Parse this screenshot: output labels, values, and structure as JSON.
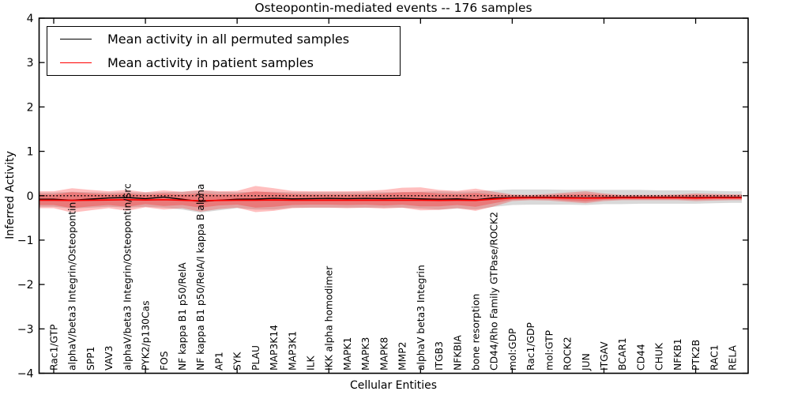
{
  "chart_data": {
    "type": "line",
    "title": "Osteopontin-mediated events -- 176 samples",
    "xlabel": "Cellular Entities",
    "ylabel": "Inferred Activity",
    "ylim": [
      -4,
      4
    ],
    "yticks": [
      -4,
      -3,
      -2,
      -1,
      0,
      1,
      2,
      3,
      4
    ],
    "xtick_interval": 5,
    "grid": false,
    "zero_line": {
      "y": 0,
      "style": "dotted",
      "color": "#000000"
    },
    "categories": [
      "Rac1/GTP",
      "alphaV/beta3 Integrin/Osteopontin",
      "SPP1",
      "VAV3",
      "alphaV/beta3 Integrin/Osteopontin/Src",
      "PYK2/p130Cas",
      "FOS",
      "NF kappa B1 p50/RelA",
      "NF kappa B1 p50/RelA/I kappa B alpha",
      "AP1",
      "SYK",
      "PLAU",
      "MAP3K14",
      "MAP3K1",
      "ILK",
      "IKK alpha homodimer",
      "MAPK1",
      "MAPK3",
      "MAPK8",
      "MMP2",
      "alphaV beta3 Integrin",
      "ITGB3",
      "NFKBIA",
      "bone resorption",
      "CD44/Rho Family GTPase/ROCK2",
      "mol:GDP",
      "Rac1/GDP",
      "mol:GTP",
      "ROCK2",
      "JUN",
      "ITGAV",
      "BCAR1",
      "CD44",
      "CHUK",
      "NFKB1",
      "PTK2B",
      "RAC1",
      "RELA"
    ],
    "series": [
      {
        "name": "Mean activity in all permuted samples",
        "color": "#000000",
        "values": [
          -0.08,
          -0.1,
          -0.075,
          -0.05,
          -0.04,
          -0.065,
          -0.03,
          -0.08,
          -0.13,
          -0.1,
          -0.08,
          -0.075,
          -0.06,
          -0.07,
          -0.065,
          -0.06,
          -0.065,
          -0.06,
          -0.065,
          -0.06,
          -0.07,
          -0.08,
          -0.07,
          -0.09,
          -0.05,
          -0.04,
          -0.035,
          -0.035,
          -0.04,
          -0.045,
          -0.04,
          -0.035,
          -0.035,
          -0.035,
          -0.035,
          -0.04,
          -0.035,
          -0.035
        ]
      },
      {
        "name": "Mean activity in patient samples",
        "color": "#ff0000",
        "values": [
          -0.1,
          -0.105,
          -0.1,
          -0.095,
          -0.09,
          -0.095,
          -0.09,
          -0.1,
          -0.115,
          -0.105,
          -0.1,
          -0.1,
          -0.095,
          -0.1,
          -0.1,
          -0.1,
          -0.1,
          -0.1,
          -0.1,
          -0.1,
          -0.1,
          -0.105,
          -0.1,
          -0.105,
          -0.075,
          -0.05,
          -0.045,
          -0.045,
          -0.05,
          -0.055,
          -0.05,
          -0.045,
          -0.045,
          -0.045,
          -0.045,
          -0.05,
          -0.045,
          -0.045
        ]
      }
    ],
    "bands": [
      {
        "name": "permuted-sample-range",
        "color": "#828282",
        "opacity": 0.3,
        "upper": [
          0.07,
          0.09,
          0.08,
          0.07,
          0.08,
          0.07,
          0.08,
          0.09,
          0.11,
          0.09,
          0.08,
          0.09,
          0.09,
          0.08,
          0.08,
          0.08,
          0.08,
          0.08,
          0.08,
          0.08,
          0.09,
          0.1,
          0.09,
          0.1,
          0.12,
          0.14,
          0.14,
          0.14,
          0.13,
          0.13,
          0.13,
          0.13,
          0.13,
          0.12,
          0.12,
          0.12,
          0.11,
          0.1
        ],
        "lower": [
          -0.25,
          -0.29,
          -0.27,
          -0.25,
          -0.27,
          -0.25,
          -0.27,
          -0.31,
          -0.38,
          -0.33,
          -0.28,
          -0.31,
          -0.31,
          -0.27,
          -0.27,
          -0.27,
          -0.27,
          -0.27,
          -0.27,
          -0.27,
          -0.29,
          -0.31,
          -0.29,
          -0.31,
          -0.25,
          -0.21,
          -0.2,
          -0.2,
          -0.2,
          -0.21,
          -0.19,
          -0.19,
          -0.18,
          -0.18,
          -0.18,
          -0.18,
          -0.17,
          -0.16
        ]
      },
      {
        "name": "patient-sample-range-outer",
        "color": "#ff0000",
        "opacity": 0.25,
        "upper": [
          0.1,
          0.17,
          0.13,
          0.1,
          0.13,
          0.08,
          0.12,
          0.09,
          0.13,
          0.1,
          0.11,
          0.22,
          0.17,
          0.11,
          0.1,
          0.1,
          0.1,
          0.11,
          0.13,
          0.18,
          0.19,
          0.13,
          0.11,
          0.16,
          0.09,
          0.03,
          0.02,
          0.04,
          0.07,
          0.1,
          0.05,
          0.02,
          0.02,
          0.02,
          0.03,
          0.05,
          0.04,
          0.03
        ],
        "lower": [
          -0.28,
          -0.38,
          -0.33,
          -0.28,
          -0.34,
          -0.26,
          -0.31,
          -0.28,
          -0.36,
          -0.3,
          -0.27,
          -0.37,
          -0.34,
          -0.28,
          -0.27,
          -0.27,
          -0.28,
          -0.27,
          -0.29,
          -0.27,
          -0.33,
          -0.32,
          -0.28,
          -0.34,
          -0.24,
          -0.12,
          -0.1,
          -0.11,
          -0.14,
          -0.17,
          -0.12,
          -0.1,
          -0.1,
          -0.1,
          -0.1,
          -0.12,
          -0.11,
          -0.1
        ]
      },
      {
        "name": "patient-sample-range-inner",
        "color": "#ff0000",
        "opacity": 0.25,
        "upper": [
          0.03,
          0.08,
          0.05,
          0.03,
          0.05,
          0.02,
          0.05,
          0.03,
          0.05,
          0.03,
          0.04,
          0.1,
          0.07,
          0.04,
          0.03,
          0.03,
          0.03,
          0.04,
          0.05,
          0.08,
          0.08,
          0.05,
          0.04,
          0.06,
          0.03,
          0.01,
          0.0,
          0.01,
          0.03,
          0.04,
          0.02,
          0.0,
          0.0,
          0.0,
          0.01,
          0.02,
          0.01,
          0.01
        ],
        "lower": [
          -0.21,
          -0.28,
          -0.24,
          -0.21,
          -0.25,
          -0.19,
          -0.23,
          -0.21,
          -0.27,
          -0.22,
          -0.2,
          -0.27,
          -0.25,
          -0.21,
          -0.2,
          -0.2,
          -0.21,
          -0.2,
          -0.22,
          -0.2,
          -0.24,
          -0.24,
          -0.21,
          -0.25,
          -0.17,
          -0.09,
          -0.08,
          -0.08,
          -0.11,
          -0.13,
          -0.09,
          -0.08,
          -0.08,
          -0.08,
          -0.08,
          -0.09,
          -0.08,
          -0.08
        ]
      }
    ],
    "legend": {
      "position": "upper-left",
      "entries": [
        {
          "label": "Mean activity in all permuted samples",
          "color": "#000000"
        },
        {
          "label": "Mean activity in patient samples",
          "color": "#ff0000"
        }
      ]
    }
  }
}
